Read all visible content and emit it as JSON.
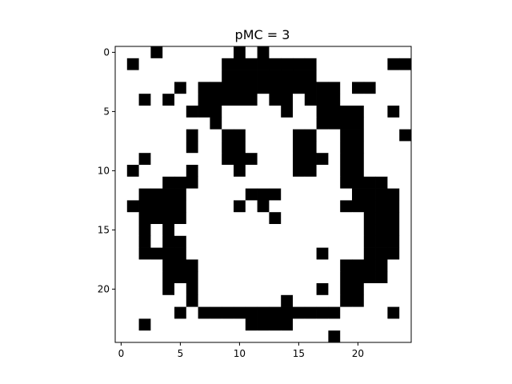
{
  "chart_data": {
    "type": "heatmap",
    "title": "pMC = 3",
    "xlabel": "",
    "ylabel": "",
    "x_ticks": [
      0,
      5,
      10,
      15,
      20
    ],
    "y_ticks": [
      0,
      5,
      10,
      15,
      20
    ],
    "xlim": [
      -0.5,
      24.5
    ],
    "ylim": [
      24.5,
      -0.5
    ],
    "colormap": {
      "0": "#ffffff",
      "1": "#000000"
    },
    "grid": false,
    "rows": 25,
    "cols": 25,
    "values": [
      [
        0,
        0,
        0,
        1,
        0,
        0,
        0,
        0,
        0,
        0,
        1,
        0,
        1,
        0,
        0,
        0,
        0,
        0,
        0,
        0,
        0,
        0,
        0,
        0,
        0
      ],
      [
        0,
        1,
        0,
        0,
        0,
        0,
        0,
        0,
        0,
        1,
        1,
        1,
        1,
        1,
        1,
        1,
        1,
        0,
        0,
        0,
        0,
        0,
        0,
        1,
        1
      ],
      [
        0,
        0,
        0,
        0,
        0,
        0,
        0,
        0,
        0,
        1,
        1,
        1,
        1,
        1,
        1,
        1,
        1,
        0,
        0,
        0,
        0,
        0,
        0,
        0,
        0
      ],
      [
        0,
        0,
        0,
        0,
        0,
        1,
        0,
        1,
        1,
        1,
        1,
        1,
        1,
        1,
        1,
        1,
        1,
        1,
        1,
        0,
        1,
        1,
        0,
        0,
        0
      ],
      [
        0,
        0,
        1,
        0,
        1,
        0,
        0,
        1,
        1,
        1,
        1,
        1,
        0,
        1,
        1,
        0,
        1,
        1,
        1,
        0,
        0,
        0,
        0,
        0,
        0
      ],
      [
        0,
        0,
        0,
        0,
        0,
        0,
        1,
        1,
        1,
        0,
        0,
        0,
        0,
        0,
        1,
        0,
        0,
        1,
        1,
        1,
        1,
        0,
        0,
        1,
        0
      ],
      [
        0,
        0,
        0,
        0,
        0,
        0,
        0,
        0,
        1,
        0,
        0,
        0,
        0,
        0,
        0,
        0,
        0,
        1,
        1,
        1,
        1,
        0,
        0,
        0,
        0
      ],
      [
        0,
        0,
        0,
        0,
        0,
        0,
        1,
        0,
        0,
        1,
        1,
        0,
        0,
        0,
        0,
        1,
        1,
        0,
        0,
        1,
        1,
        0,
        0,
        0,
        1
      ],
      [
        0,
        0,
        0,
        0,
        0,
        0,
        1,
        0,
        0,
        1,
        1,
        0,
        0,
        0,
        0,
        1,
        1,
        0,
        0,
        1,
        1,
        0,
        0,
        0,
        0
      ],
      [
        0,
        0,
        1,
        0,
        0,
        0,
        0,
        0,
        0,
        1,
        1,
        1,
        0,
        0,
        0,
        1,
        1,
        1,
        0,
        1,
        1,
        0,
        0,
        0,
        0
      ],
      [
        0,
        1,
        0,
        0,
        0,
        0,
        1,
        0,
        0,
        0,
        1,
        0,
        0,
        0,
        0,
        1,
        1,
        0,
        0,
        1,
        1,
        0,
        0,
        0,
        0
      ],
      [
        0,
        0,
        0,
        0,
        1,
        1,
        1,
        0,
        0,
        0,
        0,
        0,
        0,
        0,
        0,
        0,
        0,
        0,
        0,
        1,
        1,
        1,
        1,
        0,
        0
      ],
      [
        0,
        0,
        1,
        1,
        1,
        1,
        0,
        0,
        0,
        0,
        0,
        1,
        1,
        1,
        0,
        0,
        0,
        0,
        0,
        0,
        1,
        1,
        1,
        1,
        0
      ],
      [
        0,
        1,
        1,
        1,
        1,
        1,
        0,
        0,
        0,
        0,
        1,
        0,
        1,
        0,
        0,
        0,
        0,
        0,
        0,
        1,
        1,
        1,
        1,
        1,
        0
      ],
      [
        0,
        0,
        1,
        1,
        1,
        1,
        0,
        0,
        0,
        0,
        0,
        0,
        0,
        1,
        0,
        0,
        0,
        0,
        0,
        0,
        0,
        1,
        1,
        1,
        0
      ],
      [
        0,
        0,
        1,
        0,
        1,
        0,
        0,
        0,
        0,
        0,
        0,
        0,
        0,
        0,
        0,
        0,
        0,
        0,
        0,
        0,
        0,
        1,
        1,
        1,
        0
      ],
      [
        0,
        0,
        1,
        0,
        1,
        1,
        0,
        0,
        0,
        0,
        0,
        0,
        0,
        0,
        0,
        0,
        0,
        0,
        0,
        0,
        0,
        1,
        1,
        1,
        0
      ],
      [
        0,
        0,
        1,
        1,
        1,
        1,
        0,
        0,
        0,
        0,
        0,
        0,
        0,
        0,
        0,
        0,
        0,
        1,
        0,
        0,
        0,
        1,
        1,
        1,
        0
      ],
      [
        0,
        0,
        0,
        0,
        1,
        1,
        1,
        0,
        0,
        0,
        0,
        0,
        0,
        0,
        0,
        0,
        0,
        0,
        0,
        1,
        1,
        1,
        1,
        0,
        0
      ],
      [
        0,
        0,
        0,
        0,
        1,
        1,
        1,
        0,
        0,
        0,
        0,
        0,
        0,
        0,
        0,
        0,
        0,
        0,
        0,
        1,
        1,
        1,
        1,
        0,
        0
      ],
      [
        0,
        0,
        0,
        0,
        1,
        0,
        1,
        0,
        0,
        0,
        0,
        0,
        0,
        0,
        0,
        0,
        0,
        1,
        0,
        1,
        1,
        0,
        0,
        0,
        0
      ],
      [
        0,
        0,
        0,
        0,
        0,
        0,
        1,
        0,
        0,
        0,
        0,
        0,
        0,
        0,
        1,
        0,
        0,
        0,
        0,
        1,
        1,
        0,
        0,
        0,
        0
      ],
      [
        0,
        0,
        0,
        0,
        0,
        1,
        0,
        1,
        1,
        1,
        1,
        1,
        1,
        1,
        1,
        1,
        1,
        1,
        1,
        0,
        0,
        0,
        0,
        1,
        0
      ],
      [
        0,
        0,
        1,
        0,
        0,
        0,
        0,
        0,
        0,
        0,
        0,
        1,
        1,
        1,
        1,
        0,
        0,
        0,
        0,
        0,
        0,
        0,
        0,
        0,
        0
      ],
      [
        0,
        0,
        0,
        0,
        0,
        0,
        0,
        0,
        0,
        0,
        0,
        0,
        0,
        0,
        0,
        0,
        0,
        0,
        1,
        0,
        0,
        0,
        0,
        0,
        0
      ]
    ]
  }
}
